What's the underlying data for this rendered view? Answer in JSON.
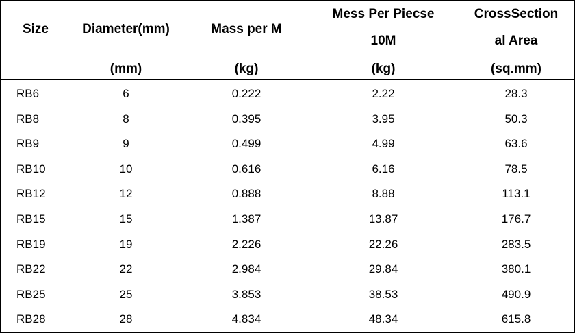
{
  "headers": {
    "size": "Size",
    "diameter": [
      "Diameter(mm)",
      "(mm)"
    ],
    "mass": [
      "Mass per M",
      "(kg)"
    ],
    "mess": [
      "Mess Per Piecse",
      "10M",
      "(kg)"
    ],
    "cross": [
      "CrossSection",
      "al Area",
      "(sq.mm)"
    ]
  },
  "rows": [
    [
      "RB6",
      "6",
      "0.222",
      "2.22",
      "28.3"
    ],
    [
      "RB8",
      "8",
      "0.395",
      "3.95",
      "50.3"
    ],
    [
      "RB9",
      "9",
      "0.499",
      "4.99",
      "63.6"
    ],
    [
      "RB10",
      "10",
      "0.616",
      "6.16",
      "78.5"
    ],
    [
      "RB12",
      "12",
      "0.888",
      "8.88",
      "113.1"
    ],
    [
      "RB15",
      "15",
      "1.387",
      "13.87",
      "176.7"
    ],
    [
      "RB19",
      "19",
      "2.226",
      "22.26",
      "283.5"
    ],
    [
      "RB22",
      "22",
      "2.984",
      "29.84",
      "380.1"
    ],
    [
      "RB25",
      "25",
      "3.853",
      "38.53",
      "490.9"
    ],
    [
      "RB28",
      "28",
      "4.834",
      "48.34",
      "615.8"
    ]
  ]
}
